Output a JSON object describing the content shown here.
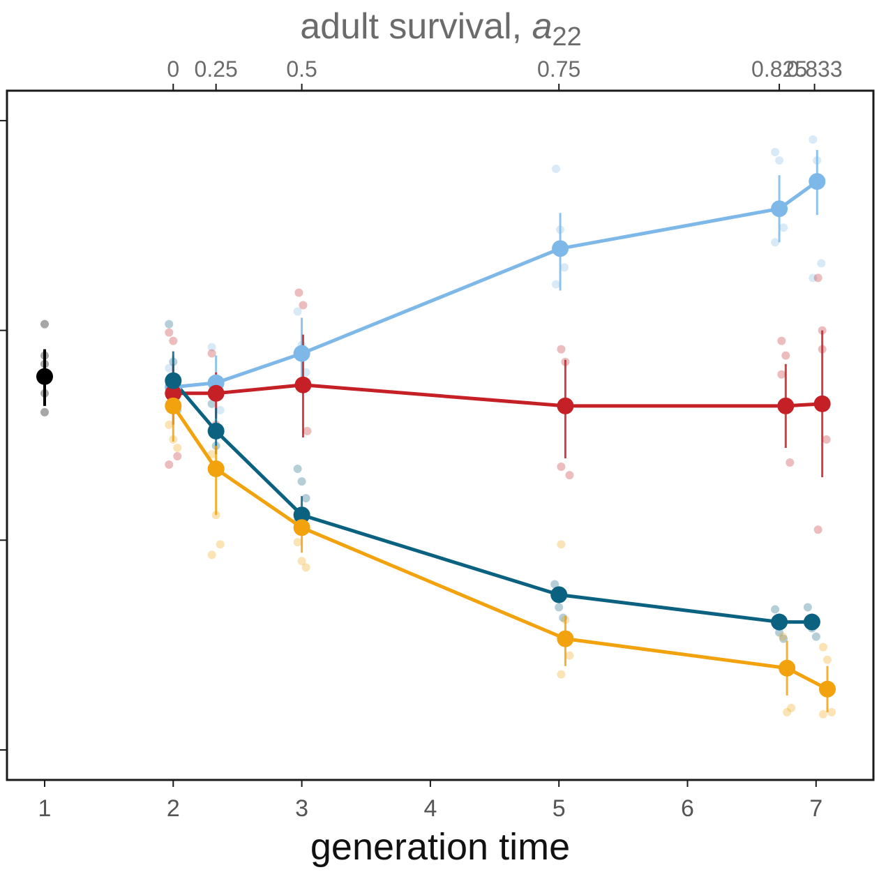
{
  "chart_data": {
    "type": "line",
    "title": "",
    "xlabel": "generation time",
    "ylabel": "",
    "xlim": [
      0.7,
      7.4
    ],
    "ylim": [
      -0.15,
      3.15
    ],
    "y_ticks": [
      0,
      1,
      2,
      3
    ],
    "y_tick_labels_visible": false,
    "x_ticks": [
      1,
      2,
      3,
      4,
      5,
      6,
      7
    ],
    "x_tick_labels": [
      "1",
      "2",
      "3",
      "4",
      "5",
      "6",
      "7"
    ],
    "top_axis": {
      "label": "adult survival, ",
      "label_symbol": "a",
      "label_subscript": "22",
      "relation": "generation time = 1 + 1/(1 - a22)",
      "ticks": [
        {
          "label": "0",
          "x": 2.0
        },
        {
          "label": "0.25",
          "x": 2.333
        },
        {
          "label": "0.5",
          "x": 3.0
        },
        {
          "label": "0.75",
          "x": 5.0
        },
        {
          "label": "0.825",
          "x": 6.714
        },
        {
          "label": "0.833",
          "x": 6.988
        }
      ]
    },
    "grid": false,
    "legend": "none",
    "reference_point": {
      "name": "baseline",
      "color": "#000000",
      "x": 1,
      "y": 1.78,
      "err": [
        1.64,
        1.91
      ],
      "replicates": [
        2.03,
        1.7,
        1.61,
        1.88,
        1.84
      ]
    },
    "series": [
      {
        "name": "light-blue",
        "color": "#7db8e8",
        "x": [
          2.0,
          2.333,
          3.0,
          5.0,
          6.714,
          6.988
        ],
        "y": [
          1.73,
          1.75,
          1.89,
          2.39,
          2.58,
          2.71
        ],
        "err_low": [
          1.65,
          1.63,
          1.74,
          2.19,
          2.42,
          2.55
        ],
        "err_high": [
          1.88,
          1.88,
          2.06,
          2.56,
          2.74,
          2.86
        ],
        "replicates": [
          [
            1.82,
            1.68
          ],
          [
            1.92,
            1.71,
            1.62
          ],
          [
            2.09,
            1.93,
            1.8
          ],
          [
            2.77,
            2.48,
            2.3,
            2.22
          ],
          [
            2.85,
            2.81,
            2.49,
            2.42
          ],
          [
            2.91,
            2.81,
            2.32,
            2.25
          ]
        ],
        "dodge": [
          0.0,
          0.0,
          0.0,
          0.01,
          0.0,
          0.02
        ]
      },
      {
        "name": "red",
        "color": "#c42026",
        "x": [
          2.0,
          2.333,
          3.0,
          5.0,
          6.714,
          6.988
        ],
        "y": [
          1.7,
          1.7,
          1.74,
          1.64,
          1.64,
          1.65
        ],
        "err_low": [
          1.55,
          1.58,
          1.49,
          1.39,
          1.44,
          1.3
        ],
        "err_high": [
          1.84,
          1.8,
          1.98,
          1.86,
          1.84,
          2.0
        ],
        "replicates": [
          [
            1.99,
            1.95,
            1.4,
            1.36
          ],
          [
            1.89,
            1.55
          ],
          [
            2.18,
            2.12,
            1.52
          ],
          [
            1.91,
            1.85,
            1.31,
            1.35
          ],
          [
            1.95,
            1.88,
            1.37,
            1.79
          ],
          [
            2.25,
            1.91,
            1.48,
            1.05,
            2.0
          ]
        ],
        "dodge": [
          0.0,
          0.0,
          0.01,
          0.05,
          0.05,
          0.06
        ]
      },
      {
        "name": "dark-teal",
        "color": "#0b6180",
        "x": [
          2.0,
          2.333,
          3.0,
          5.0,
          6.714,
          6.988
        ],
        "y": [
          1.76,
          1.52,
          1.12,
          0.74,
          0.61,
          0.61
        ],
        "err_low": [
          1.63,
          1.41,
          1.03,
          0.7,
          0.57,
          0.58
        ],
        "err_high": [
          1.9,
          1.63,
          1.21,
          0.78,
          0.65,
          0.65
        ],
        "replicates": [
          [
            2.03,
            1.85,
            1.62
          ],
          [
            1.65,
            1.45
          ],
          [
            1.34,
            1.28,
            1.2,
            1.09
          ],
          [
            0.79,
            0.68,
            0.63
          ],
          [
            0.67,
            0.56,
            0.53
          ],
          [
            0.68,
            0.58,
            0.54
          ]
        ],
        "dodge": [
          0.0,
          0.0,
          0.0,
          0.0,
          0.0,
          -0.02
        ]
      },
      {
        "name": "orange",
        "color": "#f2a20c",
        "x": [
          2.0,
          2.333,
          3.0,
          5.0,
          6.714,
          6.988
        ],
        "y": [
          1.64,
          1.34,
          1.06,
          0.53,
          0.39,
          0.29
        ],
        "err_low": [
          1.47,
          1.12,
          0.94,
          0.4,
          0.26,
          0.18
        ],
        "err_high": [
          1.76,
          1.45,
          1.16,
          0.64,
          0.52,
          0.4
        ],
        "replicates": [
          [
            1.55,
            1.48,
            1.44
          ],
          [
            1.41,
            1.12,
            0.98,
            0.93
          ],
          [
            0.99,
            0.9,
            0.87
          ],
          [
            0.98,
            0.62,
            0.45,
            0.36
          ],
          [
            0.54,
            0.18,
            0.2
          ],
          [
            0.49,
            0.43,
            0.18,
            0.17
          ]
        ],
        "dodge": [
          0.0,
          0.0,
          0.0,
          0.05,
          0.06,
          0.1
        ]
      }
    ]
  }
}
